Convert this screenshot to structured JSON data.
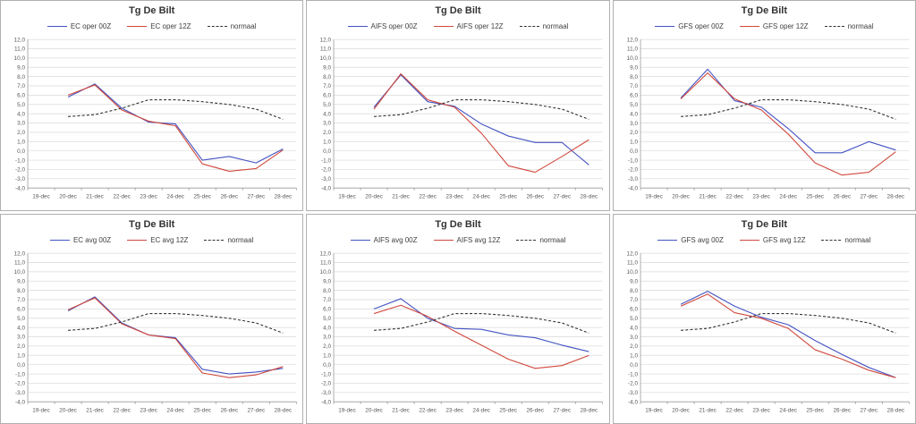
{
  "page": {
    "background": "#ffffff",
    "panel_border": "#b0b0b0"
  },
  "axis": {
    "y_min": -4,
    "y_max": 12,
    "y_step": 1,
    "y_label_format": "comma-decimal",
    "grid_color": "#d9d9d9",
    "axis_color": "#9a9a9a"
  },
  "chart_data": [
    {
      "type": "line",
      "title": "Tg De Bilt",
      "categories": [
        "19-dec",
        "20-dec",
        "21-dec",
        "22-dec",
        "23-dec",
        "24-dec",
        "25-dec",
        "26-dec",
        "27-dec",
        "28-dec"
      ],
      "ylim": [
        -4,
        12
      ],
      "legend_position": "top",
      "series": [
        {
          "name": "EC oper 00Z",
          "color": "#4453c2",
          "dash": false,
          "values": [
            null,
            5.8,
            7.2,
            4.6,
            3.1,
            2.9,
            -1.0,
            -0.6,
            -1.3,
            0.2
          ]
        },
        {
          "name": "EC oper 12Z",
          "color": "#d0493e",
          "dash": false,
          "values": [
            null,
            6.0,
            7.1,
            4.4,
            3.2,
            2.7,
            -1.4,
            -2.2,
            -1.9,
            0.1
          ]
        },
        {
          "name": "normaal",
          "color": "#333333",
          "dash": true,
          "values": [
            null,
            3.7,
            3.9,
            4.6,
            5.5,
            5.5,
            5.3,
            5.0,
            4.5,
            3.4
          ]
        }
      ]
    },
    {
      "type": "line",
      "title": "Tg De Bilt",
      "categories": [
        "19-dec",
        "20-dec",
        "21-dec",
        "22-dec",
        "23-dec",
        "24-dec",
        "25-dec",
        "26-dec",
        "27-dec",
        "28-dec"
      ],
      "ylim": [
        -4,
        12
      ],
      "legend_position": "top",
      "series": [
        {
          "name": "AIFS oper 00Z",
          "color": "#4453c2",
          "dash": false,
          "values": [
            null,
            4.7,
            8.2,
            5.3,
            4.8,
            2.9,
            1.6,
            0.9,
            0.9,
            -1.5
          ]
        },
        {
          "name": "AIFS oper 12Z",
          "color": "#d0493e",
          "dash": false,
          "values": [
            null,
            4.5,
            8.3,
            5.5,
            4.7,
            1.9,
            -1.6,
            -2.3,
            -0.6,
            1.2
          ]
        },
        {
          "name": "normaal",
          "color": "#333333",
          "dash": true,
          "values": [
            null,
            3.7,
            3.9,
            4.6,
            5.5,
            5.5,
            5.3,
            5.0,
            4.5,
            3.4
          ]
        }
      ]
    },
    {
      "type": "line",
      "title": "Tg De Bilt",
      "categories": [
        "19-dec",
        "20-dec",
        "21-dec",
        "22-dec",
        "23-dec",
        "24-dec",
        "25-dec",
        "26-dec",
        "27-dec",
        "28-dec"
      ],
      "ylim": [
        -4,
        12
      ],
      "legend_position": "top",
      "series": [
        {
          "name": "GFS oper 00Z",
          "color": "#4453c2",
          "dash": false,
          "values": [
            null,
            5.7,
            8.8,
            5.4,
            4.7,
            2.4,
            -0.2,
            -0.2,
            1.0,
            0.1
          ]
        },
        {
          "name": "GFS oper 12Z",
          "color": "#d0493e",
          "dash": false,
          "values": [
            null,
            5.6,
            8.4,
            5.6,
            4.4,
            1.8,
            -1.3,
            -2.6,
            -2.3,
            -0.1
          ]
        },
        {
          "name": "normaal",
          "color": "#333333",
          "dash": true,
          "values": [
            null,
            3.7,
            3.9,
            4.6,
            5.5,
            5.5,
            5.3,
            5.0,
            4.5,
            3.4
          ]
        }
      ]
    },
    {
      "type": "line",
      "title": "Tg De Bilt",
      "categories": [
        "19-dec",
        "20-dec",
        "21-dec",
        "22-dec",
        "23-dec",
        "24-dec",
        "25-dec",
        "26-dec",
        "27-dec",
        "28-dec"
      ],
      "ylim": [
        -4,
        12
      ],
      "legend_position": "top",
      "series": [
        {
          "name": "EC avg 00Z",
          "color": "#4453c2",
          "dash": false,
          "values": [
            null,
            5.8,
            7.3,
            4.5,
            3.2,
            2.9,
            -0.5,
            -1.0,
            -0.8,
            -0.4
          ]
        },
        {
          "name": "EC avg 12Z",
          "color": "#d0493e",
          "dash": false,
          "values": [
            null,
            5.9,
            7.2,
            4.4,
            3.2,
            2.8,
            -0.9,
            -1.4,
            -1.1,
            -0.2
          ]
        },
        {
          "name": "normaal",
          "color": "#333333",
          "dash": true,
          "values": [
            null,
            3.7,
            3.9,
            4.6,
            5.5,
            5.5,
            5.3,
            5.0,
            4.5,
            3.4
          ]
        }
      ]
    },
    {
      "type": "line",
      "title": "Tg De Bilt",
      "categories": [
        "19-dec",
        "20-dec",
        "21-dec",
        "22-dec",
        "23-dec",
        "24-dec",
        "25-dec",
        "26-dec",
        "27-dec",
        "28-dec"
      ],
      "ylim": [
        -4,
        12
      ],
      "legend_position": "top",
      "series": [
        {
          "name": "AIFS avg 00Z",
          "color": "#4453c2",
          "dash": false,
          "values": [
            null,
            6.0,
            7.1,
            5.0,
            3.9,
            3.8,
            3.2,
            2.9,
            2.1,
            1.4
          ]
        },
        {
          "name": "AIFS avg 12Z",
          "color": "#d0493e",
          "dash": false,
          "values": [
            null,
            5.5,
            6.4,
            5.2,
            3.6,
            2.1,
            0.6,
            -0.4,
            -0.1,
            1.0
          ]
        },
        {
          "name": "normaal",
          "color": "#333333",
          "dash": true,
          "values": [
            null,
            3.7,
            3.9,
            4.6,
            5.5,
            5.5,
            5.3,
            5.0,
            4.5,
            3.4
          ]
        }
      ]
    },
    {
      "type": "line",
      "title": "Tg De Bilt",
      "categories": [
        "19-dec",
        "20-dec",
        "21-dec",
        "22-dec",
        "23-dec",
        "24-dec",
        "25-dec",
        "26-dec",
        "27-dec",
        "28-dec"
      ],
      "ylim": [
        -4,
        12
      ],
      "legend_position": "top",
      "series": [
        {
          "name": "GFS avg 00Z",
          "color": "#4453c2",
          "dash": false,
          "values": [
            null,
            6.5,
            7.9,
            6.3,
            5.1,
            4.3,
            2.6,
            1.1,
            -0.3,
            -1.4
          ]
        },
        {
          "name": "GFS avg 12Z",
          "color": "#d0493e",
          "dash": false,
          "values": [
            null,
            6.3,
            7.6,
            5.6,
            5.0,
            3.9,
            1.6,
            0.6,
            -0.6,
            -1.4
          ]
        },
        {
          "name": "normaal",
          "color": "#333333",
          "dash": true,
          "values": [
            null,
            3.7,
            3.9,
            4.6,
            5.5,
            5.5,
            5.3,
            5.0,
            4.5,
            3.4
          ]
        }
      ]
    }
  ]
}
